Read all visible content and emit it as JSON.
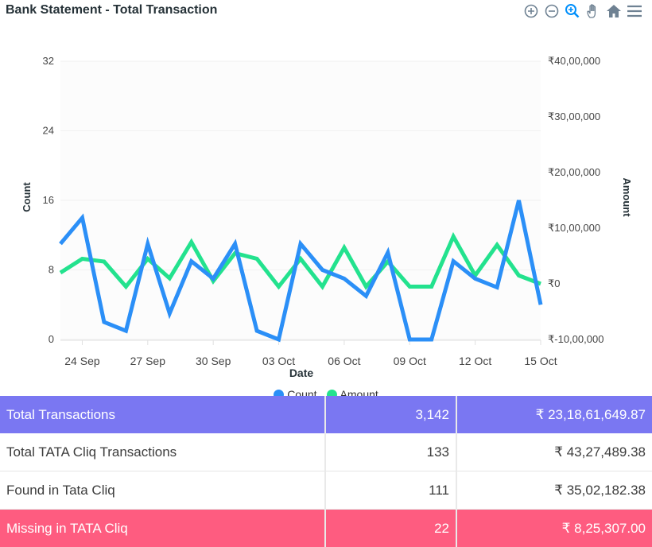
{
  "title": "Bank Statement - Total Transaction",
  "toolbar": [
    "zoom-in-icon",
    "zoom-out-icon",
    "zoom-selection-icon",
    "pan-hand-icon",
    "home-reset-icon",
    "menu-icon"
  ],
  "colors": {
    "count": "#2b8ff7",
    "amount": "#23e28e",
    "total_row": "#7a77f2",
    "missing_row": "#fe5c80"
  },
  "chart_data": {
    "type": "line",
    "xlabel": "Date",
    "ylabel": "Count",
    "y2label": "Amount",
    "ylim": [
      0,
      32
    ],
    "y2lim": [
      -1000000,
      4000000
    ],
    "yticks": [
      "0",
      "8",
      "16",
      "24",
      "32"
    ],
    "y2ticks": [
      "₹-10,00,000",
      "₹0",
      "₹10,00,000",
      "₹20,00,000",
      "₹30,00,000",
      "₹40,00,000"
    ],
    "xticks": [
      "24 Sep",
      "27 Sep",
      "30 Sep",
      "03 Oct",
      "06 Oct",
      "09 Oct",
      "12 Oct",
      "15 Oct"
    ],
    "x": [
      "23 Sep",
      "24 Sep",
      "25 Sep",
      "26 Sep",
      "27 Sep",
      "28 Sep",
      "29 Sep",
      "30 Sep",
      "01 Oct",
      "02 Oct",
      "03 Oct",
      "04 Oct",
      "05 Oct",
      "06 Oct",
      "07 Oct",
      "08 Oct",
      "09 Oct",
      "10 Oct",
      "11 Oct",
      "12 Oct",
      "13 Oct",
      "14 Oct",
      "15 Oct"
    ],
    "series": [
      {
        "name": "Count",
        "axis": "left",
        "values": [
          11,
          14,
          2,
          1,
          11,
          3,
          9,
          7,
          11,
          1,
          0,
          11,
          8,
          7,
          5,
          10,
          0,
          0,
          9,
          7,
          6,
          16,
          4
        ]
      },
      {
        "name": "Amount",
        "axis": "right",
        "values": [
          200000,
          450000,
          400000,
          -50000,
          450000,
          100000,
          750000,
          50000,
          550000,
          450000,
          -50000,
          450000,
          -50000,
          650000,
          -50000,
          400000,
          -50000,
          -50000,
          850000,
          150000,
          700000,
          150000,
          0
        ]
      }
    ],
    "legend": "bottom"
  },
  "table": {
    "rows": [
      {
        "label": "Total Transactions",
        "count": "3,142",
        "amount": "₹ 23,18,61,649.87"
      },
      {
        "label": "Total TATA Cliq Transactions",
        "count": "133",
        "amount": "₹ 43,27,489.38"
      },
      {
        "label": "Found in Tata Cliq",
        "count": "111",
        "amount": "₹ 35,02,182.38"
      },
      {
        "label": "Missing in TATA Cliq",
        "count": "22",
        "amount": "₹ 8,25,307.00"
      }
    ]
  }
}
